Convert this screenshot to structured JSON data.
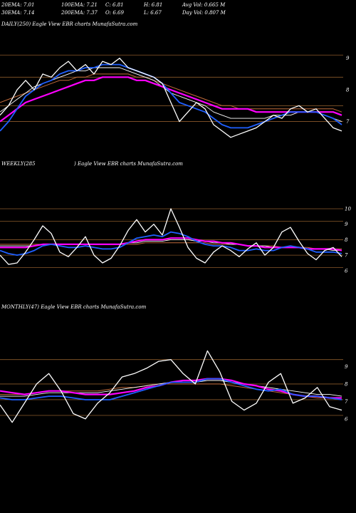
{
  "header": {
    "row1": [
      "20EMA: 7.01",
      "100EMA: 7.21",
      "C: 6.81",
      "H: 6.81",
      "Avg Vol: 0.665 M"
    ],
    "row2": [
      "30EMA: 7.14",
      "200EMA: 7.37",
      "O: 6.69",
      "L: 6.67",
      "Day Vol: 0.807 M"
    ]
  },
  "colors": {
    "price": "#ffffff",
    "ema20": "#1f5fff",
    "ema30": "#ff00ff",
    "ema100": "#ffffff",
    "ema200": "#c06a3a",
    "level_line": "#8b5a2b"
  },
  "chart_data": [
    {
      "type": "line",
      "title": "DAILY(250) Eagle  View  EBR charts MunafaSutra.com",
      "yticks": [
        "9",
        "8",
        "7"
      ],
      "ylim": [
        6.0,
        9.6
      ],
      "levels": [
        9.1,
        8.4,
        7.5,
        7.0
      ],
      "series": [
        {
          "key": "price",
          "values": [
            7.2,
            7.5,
            8.0,
            8.3,
            8.0,
            8.5,
            8.4,
            8.7,
            8.9,
            8.6,
            8.8,
            8.5,
            8.9,
            8.8,
            9.0,
            8.7,
            8.6,
            8.5,
            8.4,
            8.2,
            7.6,
            7.0,
            7.3,
            7.6,
            7.4,
            6.9,
            6.7,
            6.5,
            6.6,
            6.7,
            6.8,
            7.0,
            7.2,
            7.1,
            7.4,
            7.5,
            7.3,
            7.4,
            7.1,
            6.8,
            6.7
          ]
        },
        {
          "key": "ema20",
          "values": [
            6.7,
            7.0,
            7.4,
            7.8,
            8.0,
            8.2,
            8.3,
            8.5,
            8.6,
            8.6,
            8.7,
            8.7,
            8.8,
            8.8,
            8.8,
            8.7,
            8.6,
            8.5,
            8.4,
            8.2,
            7.9,
            7.6,
            7.5,
            7.4,
            7.3,
            7.1,
            6.9,
            6.8,
            6.8,
            6.8,
            6.9,
            7.0,
            7.1,
            7.2,
            7.3,
            7.3,
            7.3,
            7.3,
            7.2,
            7.1,
            6.9
          ]
        },
        {
          "key": "ema30",
          "values": [
            7.0,
            7.2,
            7.4,
            7.6,
            7.7,
            7.8,
            7.9,
            8.0,
            8.1,
            8.2,
            8.3,
            8.3,
            8.4,
            8.4,
            8.4,
            8.4,
            8.3,
            8.3,
            8.2,
            8.1,
            8.0,
            7.9,
            7.8,
            7.7,
            7.6,
            7.5,
            7.4,
            7.4,
            7.4,
            7.4,
            7.3,
            7.3,
            7.3,
            7.3,
            7.3,
            7.3,
            7.3,
            7.3,
            7.3,
            7.3,
            7.2
          ]
        },
        {
          "key": "ema100",
          "values": [
            7.3,
            7.5,
            7.7,
            7.9,
            8.1,
            8.2,
            8.3,
            8.4,
            8.5,
            8.6,
            8.6,
            8.7,
            8.7,
            8.7,
            8.7,
            8.6,
            8.5,
            8.4,
            8.3,
            8.1,
            7.9,
            7.8,
            7.7,
            7.6,
            7.5,
            7.3,
            7.2,
            7.1,
            7.1,
            7.1,
            7.1,
            7.1,
            7.2,
            7.2,
            7.2,
            7.3,
            7.3,
            7.3,
            7.2,
            7.1,
            7.0
          ]
        },
        {
          "key": "ema200",
          "values": [
            7.6,
            7.7,
            7.8,
            7.9,
            8.0,
            8.1,
            8.2,
            8.3,
            8.3,
            8.4,
            8.4,
            8.5,
            8.5,
            8.5,
            8.5,
            8.5,
            8.4,
            8.4,
            8.3,
            8.2,
            8.1,
            8.0,
            7.9,
            7.8,
            7.7,
            7.6,
            7.5,
            7.5,
            7.4,
            7.4,
            7.4,
            7.4,
            7.4,
            7.4,
            7.4,
            7.4,
            7.4,
            7.4,
            7.4,
            7.4,
            7.3
          ]
        }
      ]
    },
    {
      "type": "line",
      "title_left": "WEEKLY(285",
      "title_right": ") Eagle  View  EBR charts MunafaSutra.com",
      "yticks": [
        "10",
        "9",
        "8",
        "7",
        "6"
      ],
      "ylim": [
        5.3,
        10.6
      ],
      "levels": [
        10.0,
        9.2,
        8.0,
        7.0,
        6.2
      ],
      "series": [
        {
          "key": "price",
          "values": [
            7.0,
            6.4,
            6.5,
            7.2,
            8.0,
            8.9,
            8.4,
            7.2,
            6.9,
            7.5,
            8.2,
            7.0,
            6.5,
            6.8,
            7.6,
            8.6,
            9.3,
            8.5,
            9.0,
            8.3,
            10.0,
            8.8,
            7.5,
            6.8,
            6.5,
            7.2,
            7.6,
            7.3,
            6.9,
            7.4,
            7.8,
            7.0,
            7.5,
            8.5,
            8.8,
            7.9,
            7.1,
            6.7,
            7.3,
            7.5,
            6.9
          ]
        },
        {
          "key": "ema20",
          "values": [
            7.3,
            7.1,
            7.0,
            7.1,
            7.3,
            7.6,
            7.7,
            7.6,
            7.5,
            7.5,
            7.6,
            7.5,
            7.4,
            7.4,
            7.5,
            7.8,
            8.1,
            8.2,
            8.3,
            8.2,
            8.5,
            8.4,
            8.2,
            7.9,
            7.7,
            7.6,
            7.6,
            7.5,
            7.3,
            7.3,
            7.4,
            7.3,
            7.3,
            7.5,
            7.6,
            7.5,
            7.4,
            7.2,
            7.2,
            7.2,
            7.1
          ]
        },
        {
          "key": "ema30",
          "values": [
            7.5,
            7.5,
            7.5,
            7.5,
            7.6,
            7.7,
            7.7,
            7.7,
            7.7,
            7.7,
            7.7,
            7.7,
            7.7,
            7.7,
            7.7,
            7.8,
            7.9,
            8.0,
            8.0,
            8.0,
            8.1,
            8.1,
            8.1,
            8.0,
            7.9,
            7.9,
            7.8,
            7.8,
            7.7,
            7.6,
            7.6,
            7.5,
            7.5,
            7.5,
            7.5,
            7.5,
            7.4,
            7.4,
            7.4,
            7.4,
            7.3
          ]
        },
        {
          "key": "ema100",
          "values": [
            7.6,
            7.6,
            7.6,
            7.6,
            7.6,
            7.7,
            7.7,
            7.7,
            7.7,
            7.7,
            7.7,
            7.7,
            7.7,
            7.7,
            7.7,
            7.8,
            7.8,
            7.9,
            7.9,
            7.9,
            8.0,
            8.0,
            8.0,
            7.9,
            7.9,
            7.8,
            7.8,
            7.7,
            7.7,
            7.6,
            7.6,
            7.6,
            7.5,
            7.5,
            7.5,
            7.5,
            7.4,
            7.4,
            7.4,
            7.3,
            7.3
          ]
        },
        {
          "key": "ema200",
          "values": [
            7.7,
            7.7,
            7.7,
            7.7,
            7.7,
            7.7,
            7.7,
            7.7,
            7.7,
            7.7,
            7.7,
            7.7,
            7.7,
            7.7,
            7.7,
            7.7,
            7.7,
            7.8,
            7.8,
            7.8,
            7.8,
            7.8,
            7.8,
            7.8,
            7.8,
            7.7,
            7.7,
            7.7,
            7.7,
            7.6,
            7.6,
            7.6,
            7.6,
            7.5,
            7.5,
            7.5,
            7.5,
            7.4,
            7.4,
            7.4,
            7.4
          ]
        }
      ]
    },
    {
      "type": "line",
      "title": "MONTHLY(47) Eagle  View  EBR charts MunafaSutra.com",
      "yticks": [
        "9",
        "8",
        "7",
        "6"
      ],
      "ylim": [
        5.3,
        10.0
      ],
      "levels": [
        9.4,
        8.0,
        7.1,
        6.2
      ],
      "series": [
        {
          "key": "price",
          "values": [
            6.8,
            5.8,
            6.9,
            8.0,
            8.6,
            7.6,
            6.3,
            6.0,
            6.9,
            7.5,
            8.4,
            8.6,
            8.9,
            9.3,
            9.4,
            8.6,
            8.0,
            9.9,
            8.7,
            7.0,
            6.5,
            6.9,
            8.1,
            8.6,
            6.9,
            7.2,
            7.8,
            6.7,
            6.5
          ]
        },
        {
          "key": "ema20",
          "values": [
            7.2,
            7.1,
            7.1,
            7.2,
            7.3,
            7.3,
            7.2,
            7.1,
            7.1,
            7.1,
            7.3,
            7.5,
            7.7,
            7.9,
            8.1,
            8.1,
            8.1,
            8.3,
            8.3,
            8.1,
            7.9,
            7.7,
            7.6,
            7.7,
            7.4,
            7.3,
            7.3,
            7.2,
            7.1
          ]
        },
        {
          "key": "ema30",
          "values": [
            7.6,
            7.5,
            7.4,
            7.5,
            7.6,
            7.6,
            7.5,
            7.4,
            7.4,
            7.4,
            7.5,
            7.6,
            7.8,
            7.9,
            8.1,
            8.2,
            8.2,
            8.3,
            8.3,
            8.2,
            8.0,
            7.9,
            7.7,
            7.6,
            7.4,
            7.3,
            7.3,
            7.2,
            7.2
          ]
        },
        {
          "key": "ema100",
          "values": [
            7.3,
            7.3,
            7.3,
            7.4,
            7.5,
            7.5,
            7.5,
            7.5,
            7.5,
            7.6,
            7.7,
            7.8,
            7.9,
            8.0,
            8.1,
            8.1,
            8.1,
            8.2,
            8.2,
            8.1,
            8.0,
            7.9,
            7.8,
            7.7,
            7.6,
            7.5,
            7.4,
            7.4,
            7.3
          ]
        },
        {
          "key": "ema200",
          "values": [
            7.4,
            7.4,
            7.4,
            7.5,
            7.6,
            7.6,
            7.6,
            7.6,
            7.6,
            7.7,
            7.8,
            7.8,
            7.9,
            8.0,
            8.0,
            8.0,
            8.0,
            8.0,
            8.0,
            7.9,
            7.8,
            7.7,
            7.6,
            7.5,
            7.4,
            7.3,
            7.2,
            7.2,
            7.1
          ]
        }
      ]
    }
  ]
}
